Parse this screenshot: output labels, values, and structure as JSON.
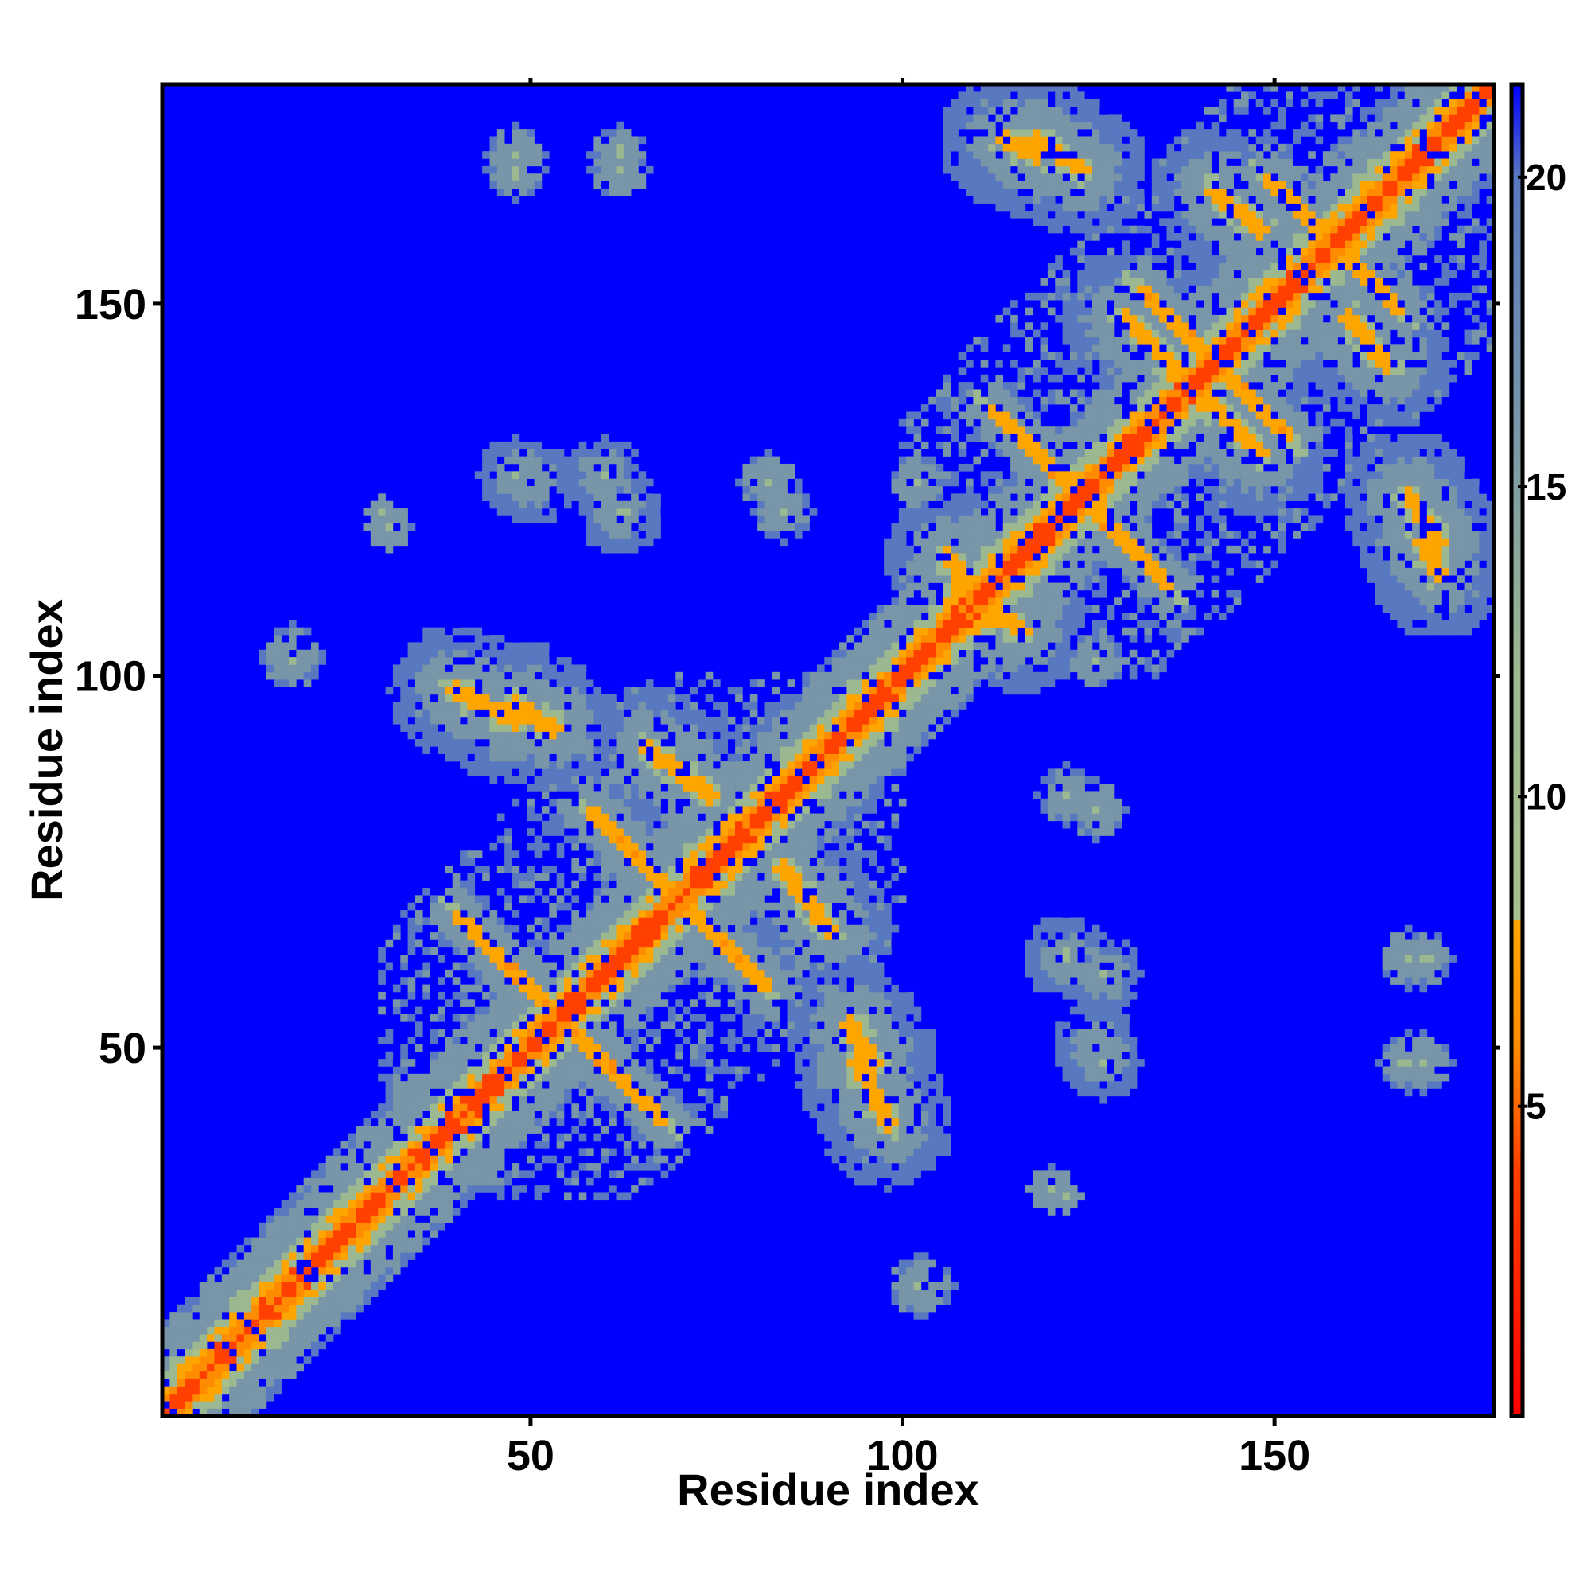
{
  "chart_data": {
    "type": "heatmap",
    "title": "",
    "xlabel": "Residue index",
    "ylabel": "Residue index",
    "x_range": [
      1,
      179
    ],
    "y_range": [
      1,
      179
    ],
    "x_ticks": [
      50,
      100,
      150
    ],
    "x_tick_labels": [
      "50",
      "100",
      "150"
    ],
    "y_ticks": [
      50,
      100,
      150
    ],
    "y_tick_labels": [
      "50",
      "100",
      "150"
    ],
    "colorbar": {
      "range": [
        0,
        21.5
      ],
      "ticks": [
        5,
        10,
        15,
        20
      ],
      "tick_labels": [
        "5",
        "10",
        "15",
        "20"
      ],
      "stops": [
        {
          "value": 0,
          "color": "#ff0000"
        },
        {
          "value": 4,
          "color": "#ff4000"
        },
        {
          "value": 6,
          "color": "#ff8c00"
        },
        {
          "value": 8,
          "color": "#ffa500"
        },
        {
          "value": 8.01,
          "color": "#a8c08c"
        },
        {
          "value": 12,
          "color": "#9cb890"
        },
        {
          "value": 16,
          "color": "#7896a8"
        },
        {
          "value": 20,
          "color": "#5878c0"
        },
        {
          "value": 21.5,
          "color": "#0000ff"
        }
      ]
    },
    "background_color": "#0000ff",
    "features": {
      "diagonal": {
        "start": 1,
        "end": 179,
        "value": 1.5
      },
      "helix_segments": [
        {
          "start": 1,
          "end": 14
        },
        {
          "start": 30,
          "end": 52
        },
        {
          "start": 56,
          "end": 78
        },
        {
          "start": 85,
          "end": 99
        },
        {
          "start": 102,
          "end": 123
        },
        {
          "start": 126,
          "end": 148
        },
        {
          "start": 152,
          "end": 179
        }
      ],
      "antidiagonal_contacts": [
        {
          "cx": 70,
          "cy": 70,
          "half_len": 12
        },
        {
          "cx": 54,
          "cy": 54,
          "half_len": 14
        },
        {
          "cx": 142,
          "cy": 142,
          "half_len": 10
        },
        {
          "cx": 124,
          "cy": 124,
          "half_len": 12
        },
        {
          "cx": 158,
          "cy": 158,
          "half_len": 9
        }
      ],
      "parallel_contacts": [
        {
          "x1": 40,
          "y1": 98,
          "x2": 48,
          "y2": 94
        },
        {
          "x1": 66,
          "y1": 90,
          "x2": 74,
          "y2": 84
        },
        {
          "x1": 96,
          "y1": 48,
          "x2": 93,
          "y2": 53
        },
        {
          "x1": 108,
          "y1": 112,
          "x2": 116,
          "y2": 106
        },
        {
          "x1": 118,
          "y1": 172,
          "x2": 124,
          "y2": 168
        },
        {
          "x1": 142,
          "y1": 165,
          "x2": 148,
          "y2": 160
        },
        {
          "x1": 170,
          "y1": 118,
          "x2": 172,
          "y2": 114
        },
        {
          "x1": 130,
          "y1": 148,
          "x2": 136,
          "y2": 142
        }
      ],
      "distant_patches": [
        {
          "cx": 48,
          "cy": 168,
          "r": 4
        },
        {
          "cx": 62,
          "cy": 168,
          "r": 4
        },
        {
          "cx": 48,
          "cy": 127,
          "r": 5
        },
        {
          "cx": 60,
          "cy": 127,
          "r": 5
        },
        {
          "cx": 18,
          "cy": 103,
          "r": 4
        },
        {
          "cx": 30,
          "cy": 122,
          "r": 2
        },
        {
          "cx": 122,
          "cy": 62,
          "r": 6
        },
        {
          "cx": 126,
          "cy": 50,
          "r": 6
        },
        {
          "cx": 170,
          "cy": 62,
          "r": 4
        },
        {
          "cx": 170,
          "cy": 48,
          "r": 4
        },
        {
          "cx": 102,
          "cy": 18,
          "r": 4
        },
        {
          "cx": 120,
          "cy": 31,
          "r": 3
        },
        {
          "cx": 126,
          "cy": 82,
          "r": 4
        },
        {
          "cx": 102,
          "cy": 126,
          "r": 4
        },
        {
          "cx": 84,
          "cy": 122,
          "r": 4
        }
      ]
    }
  }
}
